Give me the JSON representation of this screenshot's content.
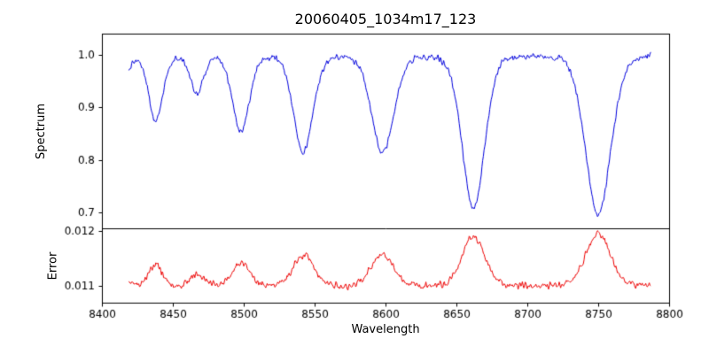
{
  "figure": {
    "background": "#ffffff"
  },
  "chart_data": {
    "type": "line",
    "title": "20060405_1034m17_123",
    "xlabel": "Wavelength",
    "xlim": [
      8400,
      8800
    ],
    "xticks": [
      8400,
      8450,
      8500,
      8550,
      8600,
      8650,
      8700,
      8750,
      8800
    ],
    "x_start": 8419,
    "x_end": 8787,
    "x_step": 0.5,
    "grid": false,
    "legend": false,
    "panels": [
      {
        "name": "spectrum",
        "ylabel": "Spectrum",
        "ylim": [
          0.67,
          1.04
        ],
        "yticks": [
          0.7,
          0.8,
          0.9,
          1.0
        ],
        "ytick_labels": [
          "0.7",
          "0.8",
          "0.9",
          "1.0"
        ],
        "color": "#0000dd",
        "continuum": 1.0,
        "noise_amplitude": 0.005,
        "absorption_lines": [
          {
            "center": 8413,
            "depth": 0.06,
            "width": 5
          },
          {
            "center": 8438,
            "depth": 0.125,
            "width": 5
          },
          {
            "center": 8467,
            "depth": 0.07,
            "width": 5
          },
          {
            "center": 8498,
            "depth": 0.145,
            "width": 6
          },
          {
            "center": 8542,
            "depth": 0.185,
            "width": 7
          },
          {
            "center": 8598,
            "depth": 0.185,
            "width": 8
          },
          {
            "center": 8662,
            "depth": 0.29,
            "width": 8
          },
          {
            "center": 8750,
            "depth": 0.305,
            "width": 9
          }
        ]
      },
      {
        "name": "error",
        "ylabel": "Error",
        "ylim": [
          0.0107,
          0.01205
        ],
        "yticks": [
          0.011,
          0.012
        ],
        "ytick_labels": [
          "0.011",
          "0.012"
        ],
        "color": "#ee0000",
        "baseline": 0.011,
        "scale": 0.0031,
        "noise_amplitude": 5e-05
      }
    ]
  }
}
